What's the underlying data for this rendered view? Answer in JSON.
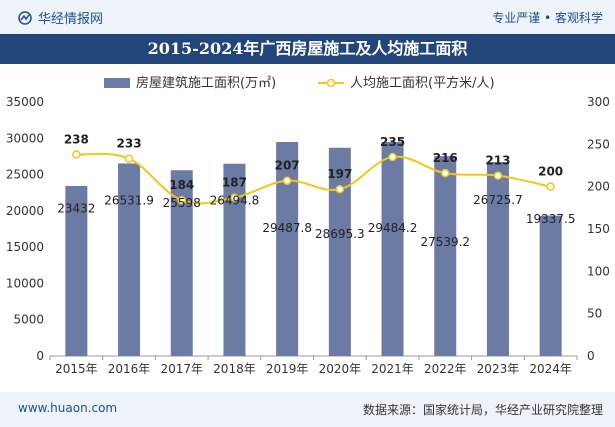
{
  "header": {
    "brand": "华经情报网",
    "tagline": "专业严谨 • 客观科学"
  },
  "footer": {
    "url": "www.huaon.com",
    "source": "数据来源：国家统计局，华经产业研究院整理"
  },
  "colors": {
    "bar": "#6b7ba3",
    "line": "#f5c518",
    "title_bg": "#22467a",
    "band": "#eef3fa"
  },
  "chart_data": {
    "type": "bar",
    "title": "2015-2024年广西房屋施工及人均施工面积",
    "categories": [
      "2015年",
      "2016年",
      "2017年",
      "2018年",
      "2019年",
      "2020年",
      "2021年",
      "2022年",
      "2023年",
      "2024年"
    ],
    "series": [
      {
        "name": "房屋建筑施工面积(万㎡)",
        "type": "bar",
        "axis": "left",
        "values": [
          23432,
          26531.9,
          25598,
          26494.8,
          29487.8,
          28695.3,
          29484.2,
          27539.2,
          26725.7,
          19337.5
        ],
        "labels": [
          "23432",
          "26531.9",
          "25598",
          "26494.8",
          "29487.8",
          "28695.3",
          "29484.2",
          "27539.2",
          "26725.7",
          "19337.5"
        ]
      },
      {
        "name": "人均施工面积(平方米/人)",
        "type": "line",
        "axis": "right",
        "values": [
          238,
          233,
          184,
          187,
          207,
          197,
          235,
          216,
          213,
          200
        ],
        "labels": [
          "238",
          "233",
          "184",
          "187",
          "207",
          "197",
          "235",
          "216",
          "213",
          "200"
        ]
      }
    ],
    "y_left": {
      "min": 0,
      "max": 35000,
      "ticks": [
        "0",
        "5000",
        "10000",
        "15000",
        "20000",
        "25000",
        "30000",
        "35000"
      ]
    },
    "y_right": {
      "min": 0,
      "max": 300,
      "ticks": [
        "0",
        "50",
        "100",
        "150",
        "200",
        "250",
        "300"
      ]
    },
    "legend_position": "top-center",
    "grid": false
  }
}
